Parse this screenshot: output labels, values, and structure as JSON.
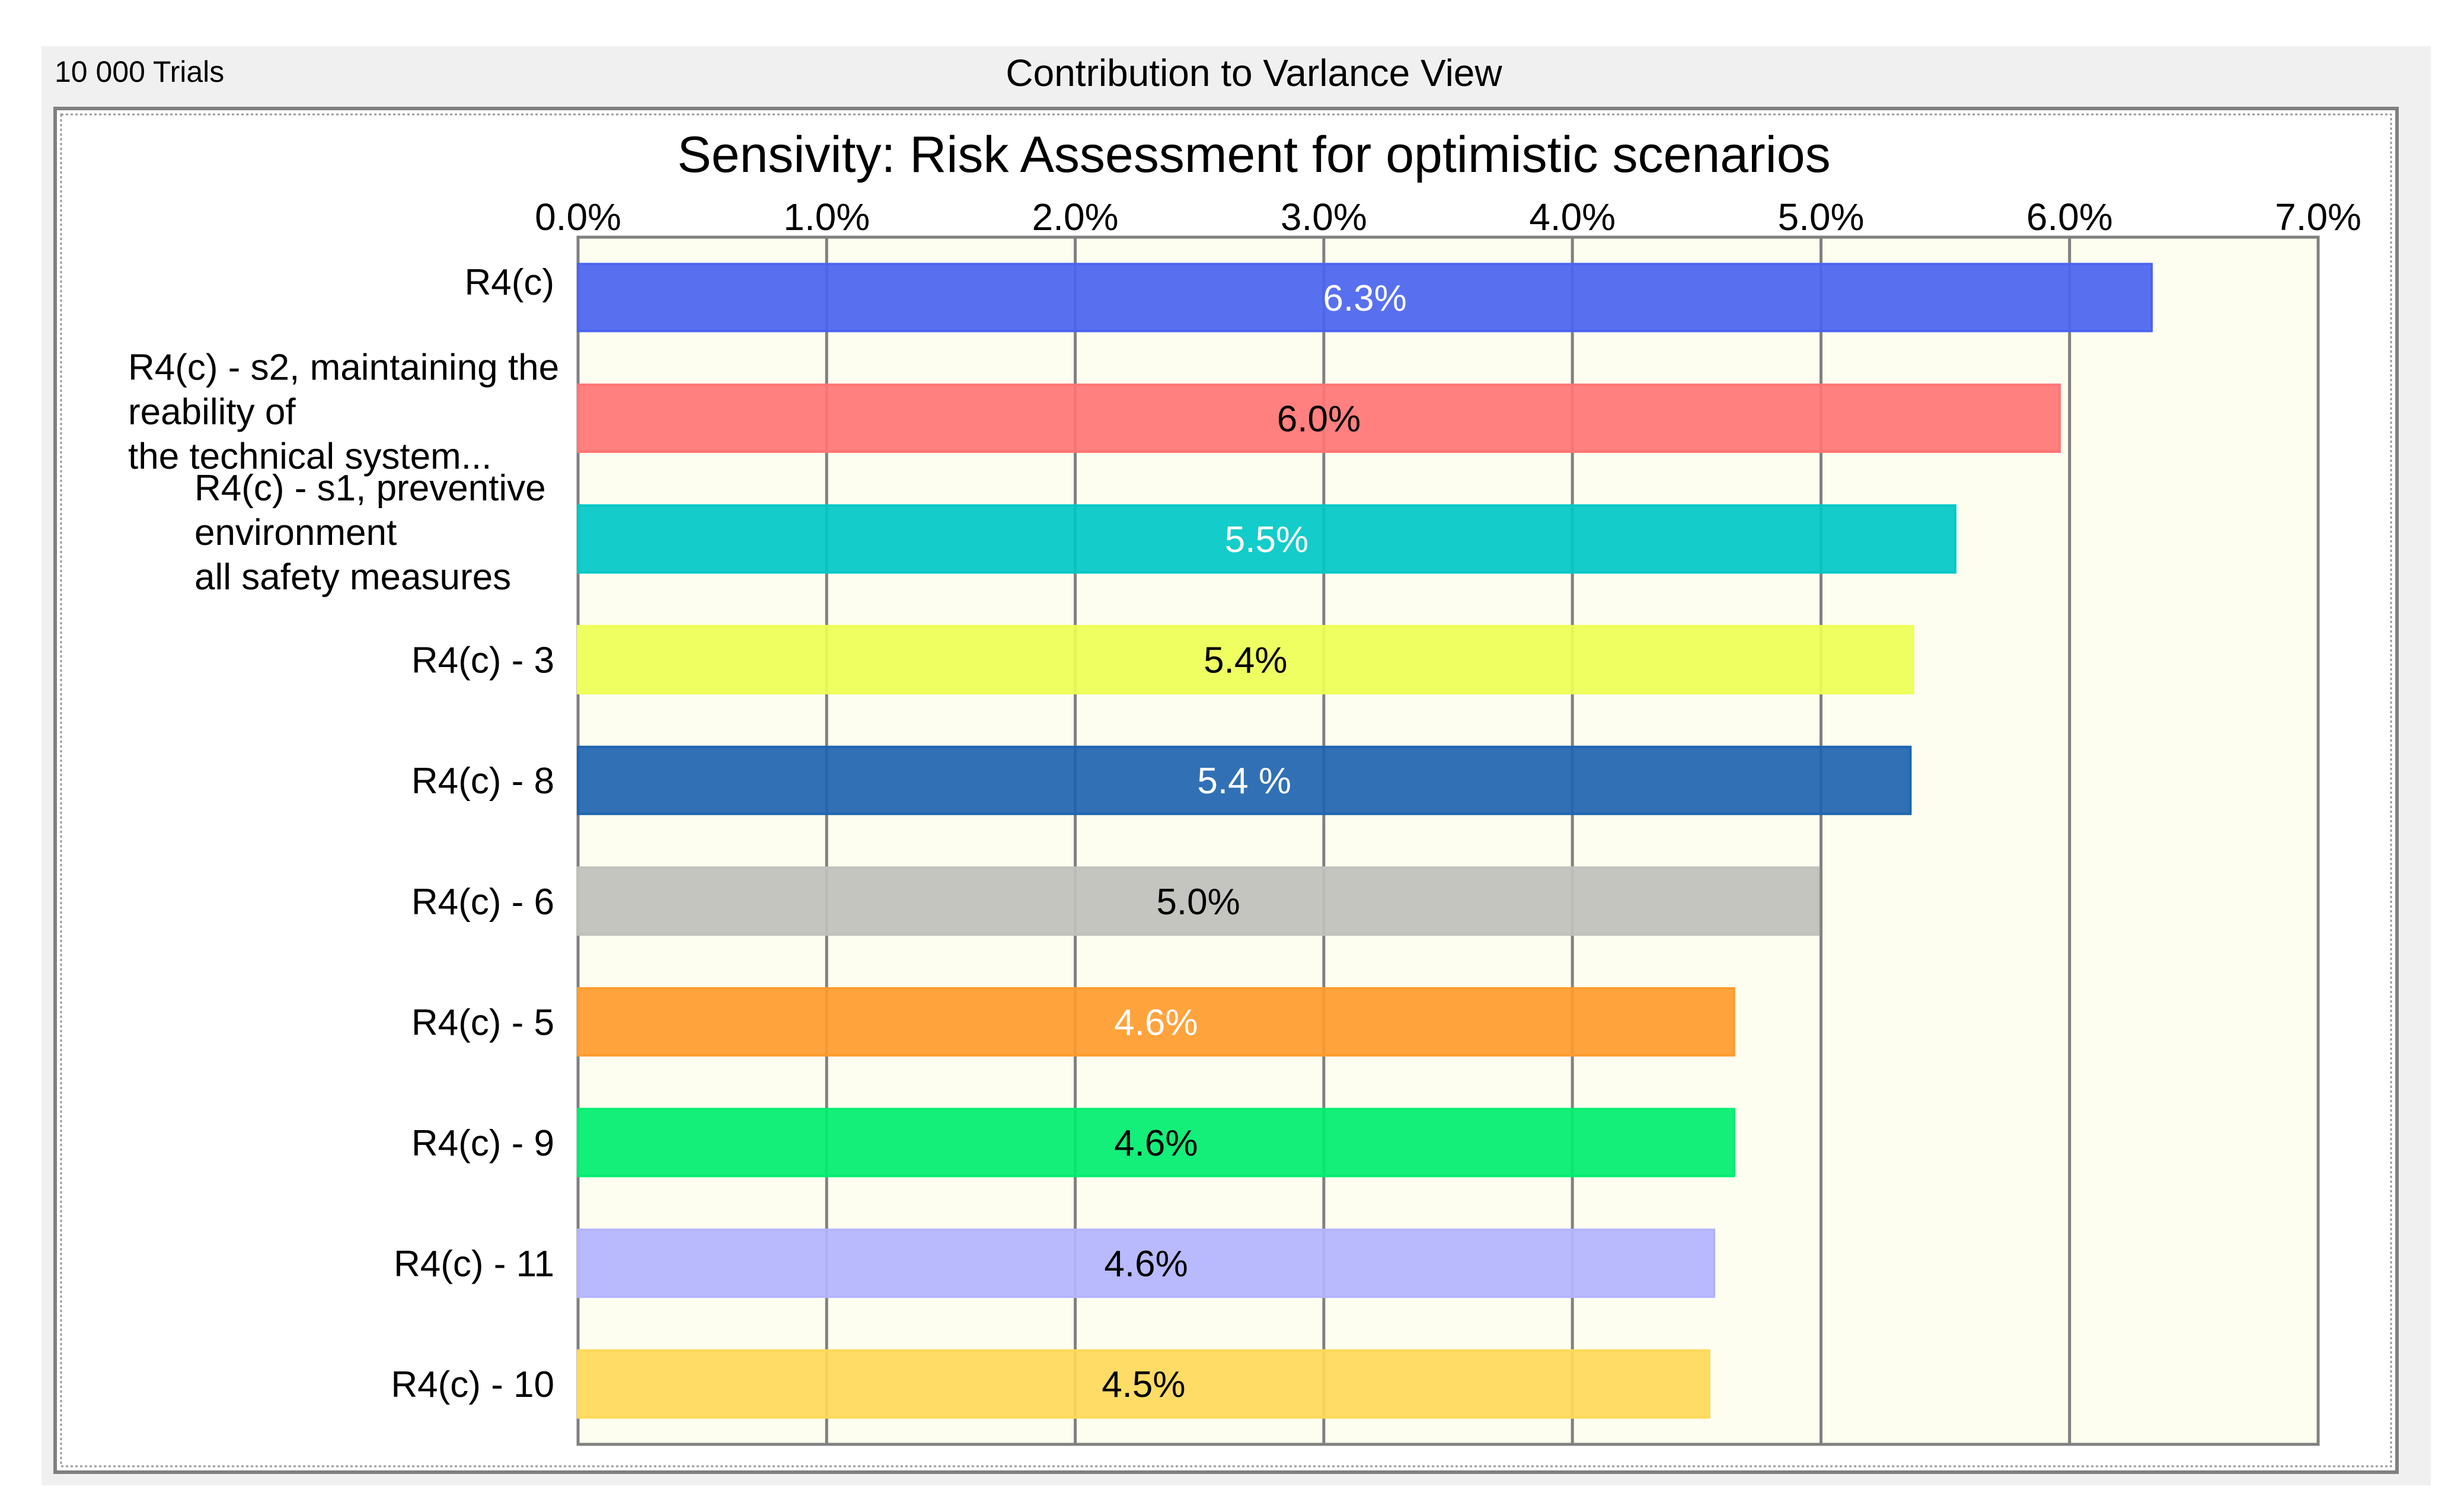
{
  "window": {
    "trials_label": "10 000 Trials",
    "view_title": "Contribution to Varlance View"
  },
  "colors": {
    "panel_background": "#f0f0f0",
    "plot_background": "#fefef0",
    "grid_line": "#808080"
  },
  "chart_data": {
    "type": "bar",
    "orientation": "horizontal",
    "title": "Sensivity: Risk Assessment for optimistic scenarios",
    "xlim": [
      0,
      7
    ],
    "x_unit": "%",
    "x_ticks": [
      0,
      1,
      2,
      3,
      4,
      5,
      6,
      7
    ],
    "x_tick_labels": [
      "0.0%",
      "1.0%",
      "2.0%",
      "3.0%",
      "4.0%",
      "5.0%",
      "6.0%",
      "7.0%"
    ],
    "grid": "vertical",
    "categories": [
      [
        "R4(c)"
      ],
      [
        "R4(c) - s2, maintaining the",
        "reability of",
        "the technical system..."
      ],
      [
        "R4(c) - s1, preventive",
        "environment",
        "all safety measures"
      ],
      [
        "R4(c) - 3"
      ],
      [
        "R4(c) - 8"
      ],
      [
        "R4(c) - 6"
      ],
      [
        "R4(c) - 5"
      ],
      [
        "R4(c) - 9"
      ],
      [
        "R4(c) - 11"
      ],
      [
        "R4(c) - 10"
      ]
    ],
    "values": [
      6.33,
      5.96,
      5.54,
      5.37,
      5.36,
      4.99,
      4.65,
      4.65,
      4.57,
      4.55
    ],
    "data_labels": [
      "6.3%",
      "6.0%",
      "5.5%",
      "5.4%",
      "5.4 %",
      "5.0%",
      "4.6%",
      "4.6%",
      "4.6%",
      "4.5%"
    ],
    "bar_colors": [
      "#4a64f0",
      "#ff7575",
      "#00c8c6",
      "#eeff55",
      "#1f64b0",
      "#c0c0bc",
      "#ff9b2e",
      "#00ee70",
      "#b3b4ff",
      "#ffd95a"
    ],
    "label_colors": [
      "#ffffff",
      "#000000",
      "#ffffff",
      "#000000",
      "#ffffff",
      "#000000",
      "#ffffff",
      "#000000",
      "#000000",
      "#000000"
    ]
  }
}
